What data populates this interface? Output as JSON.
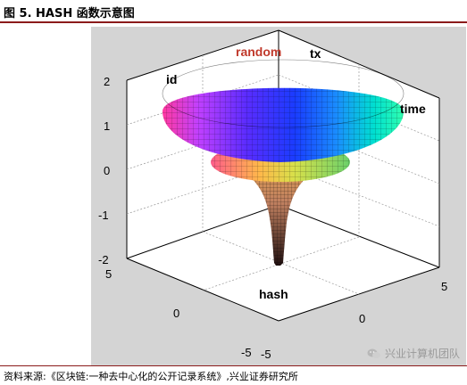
{
  "header": {
    "title": "图 5. HASH 函数示意图"
  },
  "labels": {
    "random": "random",
    "tx": "tx",
    "id": "id",
    "time": "time",
    "hash": "hash"
  },
  "z_ticks": [
    "2",
    "1",
    "0",
    "-1",
    "-2"
  ],
  "y_ticks": [
    "5",
    "0",
    "-5"
  ],
  "x_ticks": [
    "-5",
    "0",
    "5"
  ],
  "watermark": {
    "text": "兴业计算机团队",
    "icon": "wechat-icon"
  },
  "footer": {
    "source": "资料来源:《区块链:一种去中心化的公开记录系统》,兴业证券研究所"
  },
  "colors": {
    "rule": "#8b1a1a",
    "random_label": "#c0392b",
    "plot_bg": "#ffffff",
    "panel_bg": "#d4d4d4"
  }
}
